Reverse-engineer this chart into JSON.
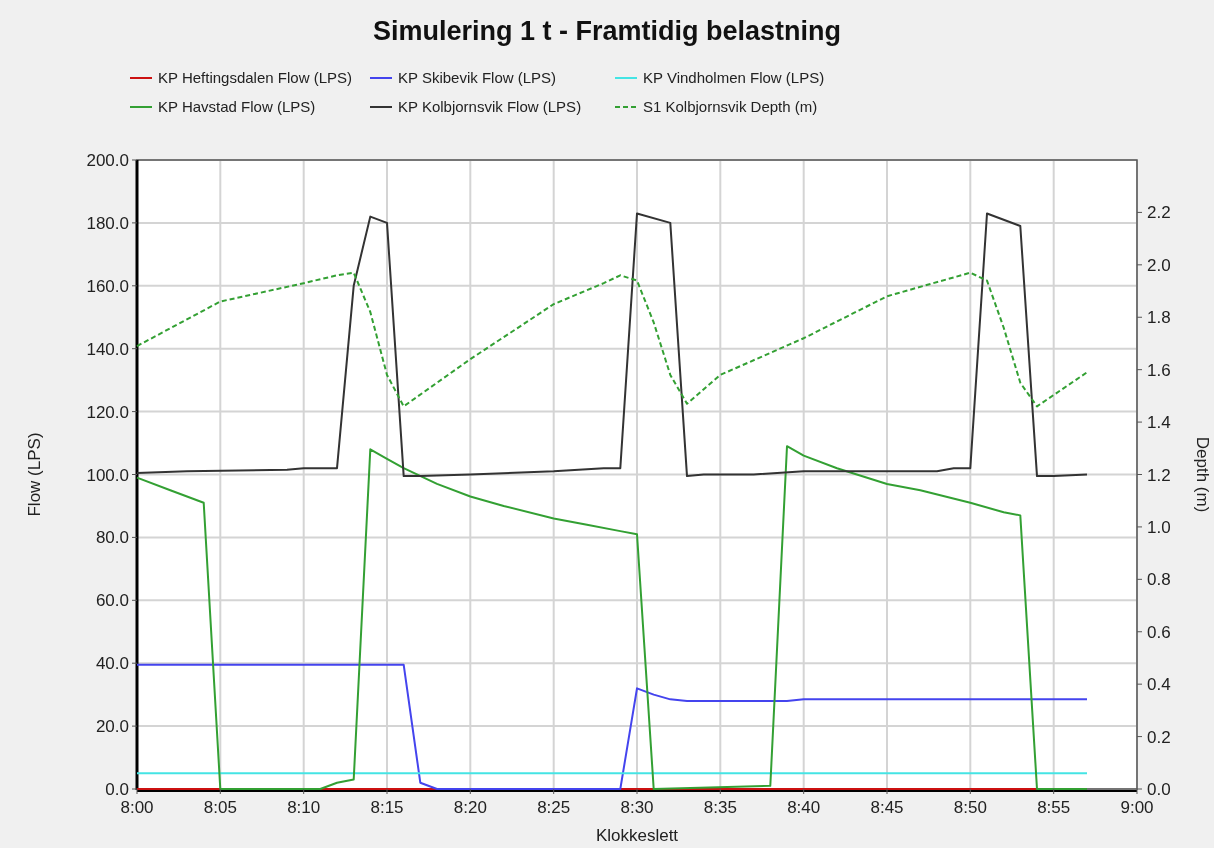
{
  "chart_data": {
    "type": "line",
    "title": "Simulering 1 t - Framtidig belastning",
    "xlabel": "Klokkeslett",
    "ylabel": "Flow (LPS)",
    "y2label": "Depth (m)",
    "xlim": [
      8,
      9
    ],
    "xticks": [
      {
        "value": 8,
        "label": "8:00"
      },
      {
        "value": 8.0833,
        "label": "8:05"
      },
      {
        "value": 8.1667,
        "label": "8:10"
      },
      {
        "value": 8.25,
        "label": "8:15"
      },
      {
        "value": 8.3333,
        "label": "8:20"
      },
      {
        "value": 8.4167,
        "label": "8:25"
      },
      {
        "value": 8.5,
        "label": "8:30"
      },
      {
        "value": 8.5833,
        "label": "8:35"
      },
      {
        "value": 8.6667,
        "label": "8:40"
      },
      {
        "value": 8.75,
        "label": "8:45"
      },
      {
        "value": 8.8333,
        "label": "8:50"
      },
      {
        "value": 8.9167,
        "label": "8:55"
      },
      {
        "value": 9,
        "label": "9:00"
      }
    ],
    "ylim": [
      0,
      200
    ],
    "yticks": [
      {
        "value": 0,
        "label": "0.0"
      },
      {
        "value": 20,
        "label": "20.0"
      },
      {
        "value": 40,
        "label": "40.0"
      },
      {
        "value": 60,
        "label": "60.0"
      },
      {
        "value": 80,
        "label": "80.0"
      },
      {
        "value": 100,
        "label": "100.0"
      },
      {
        "value": 120,
        "label": "120.0"
      },
      {
        "value": 140,
        "label": "140.0"
      },
      {
        "value": 160,
        "label": "160.0"
      },
      {
        "value": 180,
        "label": "180.0"
      },
      {
        "value": 200,
        "label": "200.0"
      }
    ],
    "y2lim": [
      0,
      2.4
    ],
    "y2ticks": [
      {
        "value": 0,
        "label": "0.0"
      },
      {
        "value": 0.2,
        "label": "0.2"
      },
      {
        "value": 0.4,
        "label": "0.4"
      },
      {
        "value": 0.6,
        "label": "0.6"
      },
      {
        "value": 0.8,
        "label": "0.8"
      },
      {
        "value": 1,
        "label": "1.0"
      },
      {
        "value": 1.2,
        "label": "1.2"
      },
      {
        "value": 1.4,
        "label": "1.4"
      },
      {
        "value": 1.6,
        "label": "1.6"
      },
      {
        "value": 1.8,
        "label": "1.8"
      },
      {
        "value": 2,
        "label": "2.0"
      },
      {
        "value": 2.2,
        "label": "2.2"
      }
    ],
    "grid": true,
    "legend": "top",
    "marker": "none",
    "series": [
      {
        "name": "KP Heftingsdalen Flow (LPS)",
        "color": "#cc1111",
        "x": [
          8,
          8.95
        ],
        "values": [
          0,
          0
        ]
      },
      {
        "name": "KP Skibevik Flow (LPS)",
        "color": "#4444ee",
        "x": [
          8,
          8.2667,
          8.2833,
          8.3,
          8.4833,
          8.5,
          8.5167,
          8.5333,
          8.55,
          8.65,
          8.6667,
          8.95
        ],
        "values": [
          39.5,
          39.5,
          2,
          0,
          0,
          32,
          30,
          28.5,
          28,
          28,
          28.5,
          28.5
        ]
      },
      {
        "name": "KP Vindholmen Flow (LPS)",
        "color": "#44e4e4",
        "x": [
          8,
          8.95
        ],
        "values": [
          5,
          5
        ]
      },
      {
        "name": "KP Havstad Flow (LPS)",
        "color": "#33a033",
        "x": [
          8,
          8.0333,
          8.0667,
          8.0833,
          8.1833,
          8.2,
          8.2167,
          8.2333,
          8.25,
          8.2667,
          8.3,
          8.3333,
          8.3667,
          8.4167,
          8.45,
          8.4833,
          8.5,
          8.5167,
          8.6333,
          8.65,
          8.6667,
          8.7,
          8.75,
          8.7833,
          8.8333,
          8.8667,
          8.8833,
          8.9,
          8.95
        ],
        "values": [
          99,
          95,
          91,
          0,
          0,
          2,
          3,
          108,
          105,
          102,
          97,
          93,
          90,
          86,
          84,
          82,
          81,
          0,
          1,
          109,
          106,
          102,
          97,
          95,
          91,
          88,
          87,
          0,
          0
        ]
      },
      {
        "name": "KP Kolbjornsvik Flow (LPS)",
        "color": "#333333",
        "x": [
          8,
          8.05,
          8.15,
          8.1667,
          8.2,
          8.2167,
          8.2333,
          8.25,
          8.2667,
          8.2833,
          8.3333,
          8.4167,
          8.4667,
          8.4833,
          8.5,
          8.5333,
          8.55,
          8.5667,
          8.6167,
          8.6667,
          8.8,
          8.8167,
          8.8333,
          8.85,
          8.8833,
          8.9,
          8.9167,
          8.95
        ],
        "values": [
          100.5,
          101,
          101.5,
          102,
          102,
          160,
          182,
          180,
          99.5,
          99.5,
          100,
          101,
          102,
          102,
          183,
          180,
          99.5,
          100,
          100,
          101,
          101,
          102,
          102,
          183,
          179,
          99.5,
          99.5,
          100
        ]
      },
      {
        "name": "S1 Kolbjornsvik Depth (m)",
        "color": "#33a033",
        "axis": "y2",
        "line_style": "dashed",
        "x": [
          8,
          8.0833,
          8.1667,
          8.2,
          8.2167,
          8.2333,
          8.25,
          8.2667,
          8.3333,
          8.4167,
          8.4667,
          8.4833,
          8.5,
          8.5167,
          8.5333,
          8.55,
          8.5833,
          8.6667,
          8.75,
          8.8333,
          8.85,
          8.8667,
          8.8833,
          8.9,
          8.95
        ],
        "values": [
          1.69,
          1.86,
          1.93,
          1.96,
          1.97,
          1.82,
          1.58,
          1.46,
          1.64,
          1.85,
          1.93,
          1.96,
          1.94,
          1.78,
          1.58,
          1.47,
          1.58,
          1.72,
          1.88,
          1.97,
          1.94,
          1.76,
          1.55,
          1.46,
          1.59
        ]
      }
    ]
  }
}
